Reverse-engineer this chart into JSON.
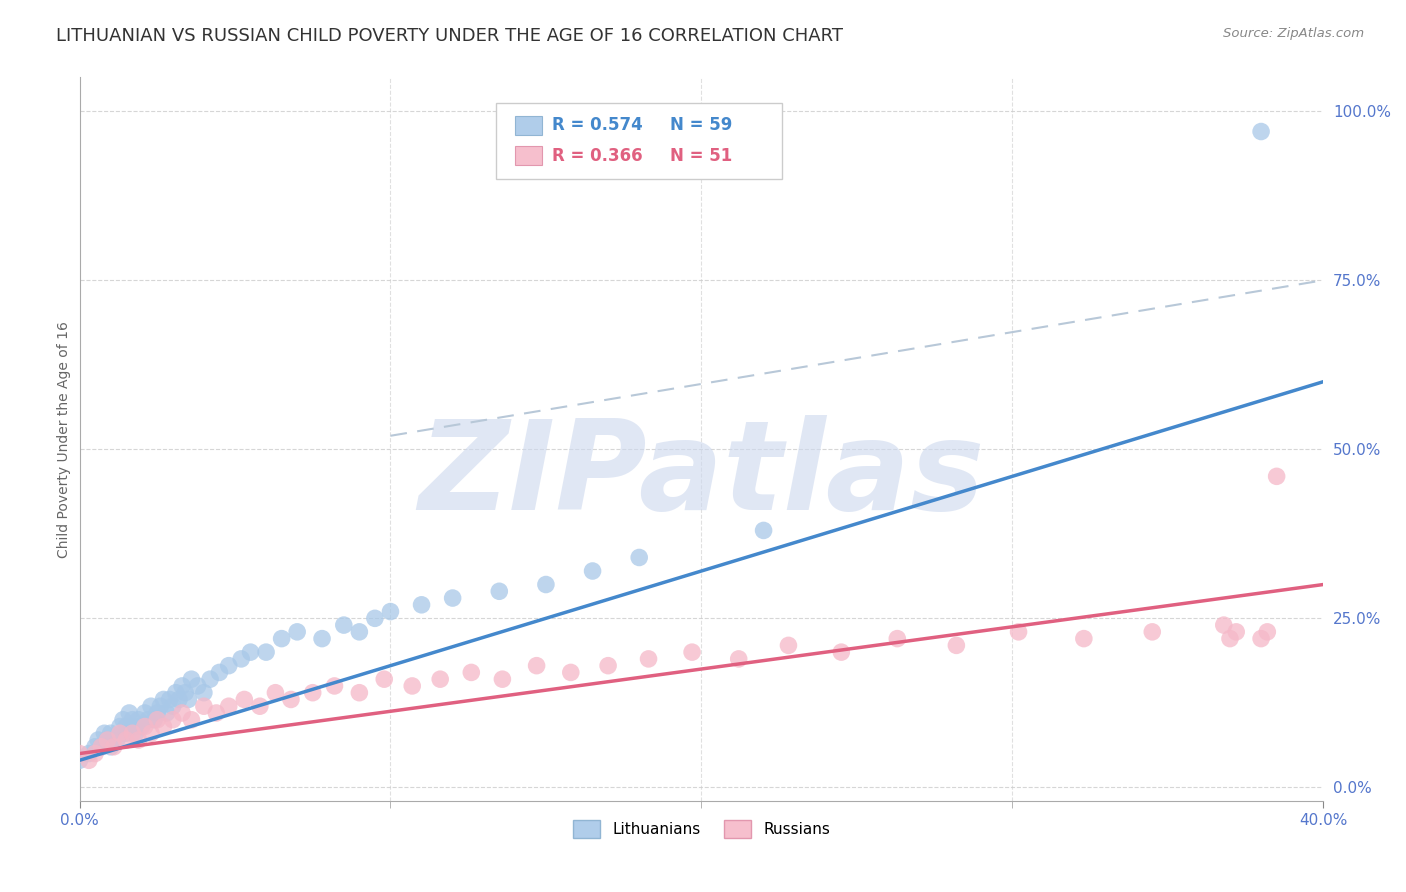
{
  "title": "LITHUANIAN VS RUSSIAN CHILD POVERTY UNDER THE AGE OF 16 CORRELATION CHART",
  "source": "Source: ZipAtlas.com",
  "ylabel": "Child Poverty Under the Age of 16",
  "xlim": [
    0.0,
    0.4
  ],
  "ylim": [
    -0.02,
    1.05
  ],
  "title_fontsize": 13,
  "axis_label_fontsize": 10,
  "tick_fontsize": 11,
  "legend_r_blue": "R = 0.574",
  "legend_n_blue": "N = 59",
  "legend_r_pink": "R = 0.366",
  "legend_n_pink": "N = 51",
  "blue_scatter_color": "#a8c8e8",
  "pink_scatter_color": "#f5b8c8",
  "blue_line_color": "#4488cc",
  "pink_line_color": "#e06080",
  "dashed_line_color": "#b8c8d8",
  "title_color": "#333333",
  "tick_color": "#5577cc",
  "watermark_color": "#ccd8ee",
  "grid_color": "#cccccc",
  "background_color": "#ffffff",
  "blue_scatter_x": [
    0.0,
    0.003,
    0.005,
    0.006,
    0.007,
    0.008,
    0.009,
    0.01,
    0.01,
    0.012,
    0.013,
    0.014,
    0.015,
    0.015,
    0.016,
    0.017,
    0.018,
    0.018,
    0.019,
    0.02,
    0.021,
    0.022,
    0.023,
    0.024,
    0.025,
    0.026,
    0.027,
    0.028,
    0.029,
    0.03,
    0.031,
    0.032,
    0.033,
    0.034,
    0.035,
    0.036,
    0.038,
    0.04,
    0.042,
    0.045,
    0.048,
    0.052,
    0.055,
    0.06,
    0.065,
    0.07,
    0.078,
    0.085,
    0.09,
    0.095,
    0.1,
    0.11,
    0.12,
    0.135,
    0.15,
    0.165,
    0.18,
    0.22,
    0.38
  ],
  "blue_scatter_y": [
    0.04,
    0.05,
    0.06,
    0.07,
    0.06,
    0.08,
    0.07,
    0.06,
    0.08,
    0.07,
    0.09,
    0.1,
    0.08,
    0.09,
    0.11,
    0.1,
    0.08,
    0.09,
    0.1,
    0.09,
    0.11,
    0.1,
    0.12,
    0.1,
    0.11,
    0.12,
    0.13,
    0.11,
    0.13,
    0.12,
    0.14,
    0.13,
    0.15,
    0.14,
    0.13,
    0.16,
    0.15,
    0.14,
    0.16,
    0.17,
    0.18,
    0.19,
    0.2,
    0.2,
    0.22,
    0.23,
    0.22,
    0.24,
    0.23,
    0.25,
    0.26,
    0.27,
    0.28,
    0.29,
    0.3,
    0.32,
    0.34,
    0.38,
    0.97
  ],
  "pink_scatter_x": [
    0.0,
    0.003,
    0.005,
    0.007,
    0.009,
    0.011,
    0.013,
    0.015,
    0.017,
    0.019,
    0.021,
    0.023,
    0.025,
    0.027,
    0.03,
    0.033,
    0.036,
    0.04,
    0.044,
    0.048,
    0.053,
    0.058,
    0.063,
    0.068,
    0.075,
    0.082,
    0.09,
    0.098,
    0.107,
    0.116,
    0.126,
    0.136,
    0.147,
    0.158,
    0.17,
    0.183,
    0.197,
    0.212,
    0.228,
    0.245,
    0.263,
    0.282,
    0.302,
    0.323,
    0.345,
    0.368,
    0.37,
    0.372,
    0.38,
    0.382,
    0.385
  ],
  "pink_scatter_y": [
    0.05,
    0.04,
    0.05,
    0.06,
    0.07,
    0.06,
    0.08,
    0.07,
    0.08,
    0.07,
    0.09,
    0.08,
    0.1,
    0.09,
    0.1,
    0.11,
    0.1,
    0.12,
    0.11,
    0.12,
    0.13,
    0.12,
    0.14,
    0.13,
    0.14,
    0.15,
    0.14,
    0.16,
    0.15,
    0.16,
    0.17,
    0.16,
    0.18,
    0.17,
    0.18,
    0.19,
    0.2,
    0.19,
    0.21,
    0.2,
    0.22,
    0.21,
    0.23,
    0.22,
    0.23,
    0.24,
    0.22,
    0.23,
    0.22,
    0.23,
    0.46
  ],
  "blue_line_x": [
    0.0,
    0.4
  ],
  "blue_line_y": [
    0.04,
    0.6
  ],
  "pink_line_x": [
    0.0,
    0.4
  ],
  "pink_line_y": [
    0.05,
    0.3
  ],
  "dashed_line_x": [
    0.1,
    0.4
  ],
  "dashed_line_y": [
    0.52,
    0.75
  ],
  "ytick_vals": [
    0.0,
    0.25,
    0.5,
    0.75,
    1.0
  ],
  "ytick_labels": [
    "0.0%",
    "25.0%",
    "50.0%",
    "75.0%",
    "100.0%"
  ],
  "xtick_left_label": "0.0%",
  "xtick_right_label": "40.0%",
  "xtick_left_val": 0.0,
  "xtick_right_val": 0.4,
  "xtick_minor_vals": [
    0.1,
    0.2,
    0.3
  ]
}
